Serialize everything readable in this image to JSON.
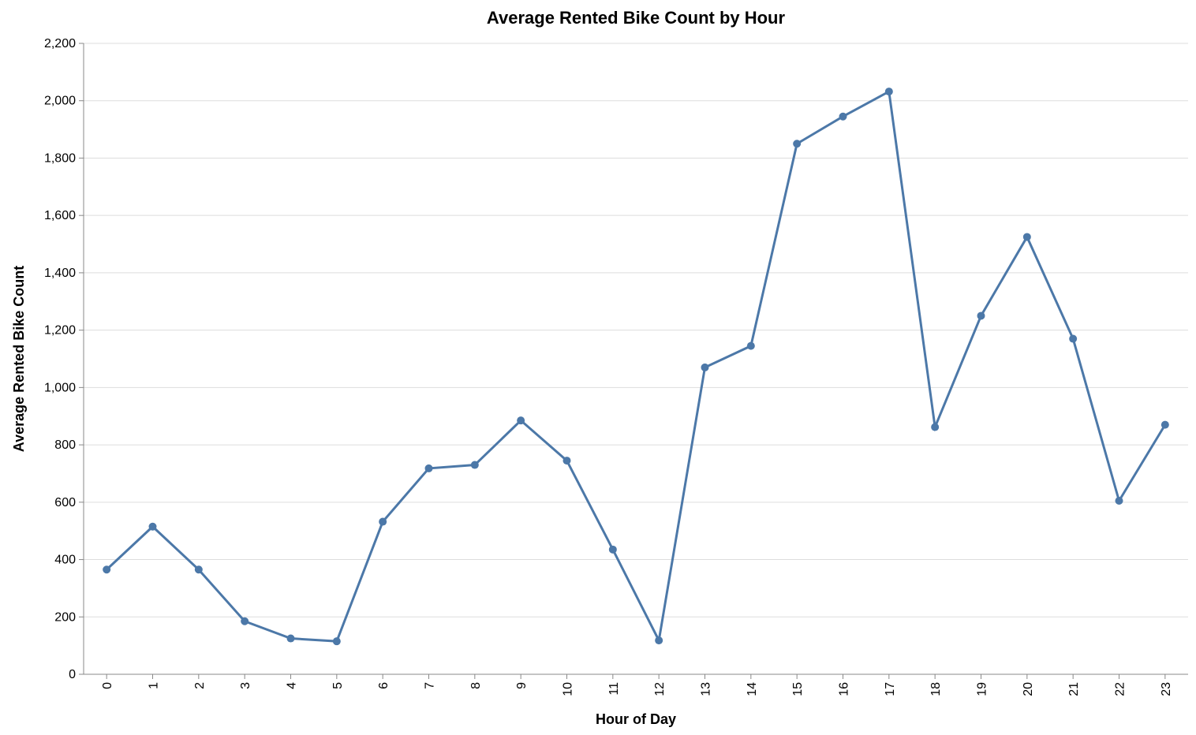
{
  "chart_data": {
    "type": "line",
    "title": "Average Rented Bike Count by Hour",
    "xlabel": "Hour of Day",
    "ylabel": "Average Rented Bike Count",
    "x": [
      "0",
      "1",
      "2",
      "3",
      "4",
      "5",
      "6",
      "7",
      "8",
      "9",
      "10",
      "11",
      "12",
      "13",
      "14",
      "15",
      "16",
      "17",
      "18",
      "19",
      "20",
      "21",
      "22",
      "23"
    ],
    "values": [
      365,
      515,
      365,
      185,
      125,
      115,
      532,
      718,
      730,
      885,
      745,
      435,
      118,
      1070,
      1145,
      1850,
      1945,
      2032,
      862,
      1250,
      1525,
      1170,
      605,
      870
    ],
    "ylim": [
      0,
      2200
    ],
    "yticks": [
      0,
      200,
      400,
      600,
      800,
      1000,
      1200,
      1400,
      1600,
      1800,
      2000,
      2200
    ],
    "ytick_labels": [
      "0",
      "200",
      "400",
      "600",
      "800",
      "1,000",
      "1,200",
      "1,400",
      "1,600",
      "1,800",
      "2,000",
      "2,200"
    ],
    "grid": "horizontal",
    "color": "#4c78a8"
  }
}
